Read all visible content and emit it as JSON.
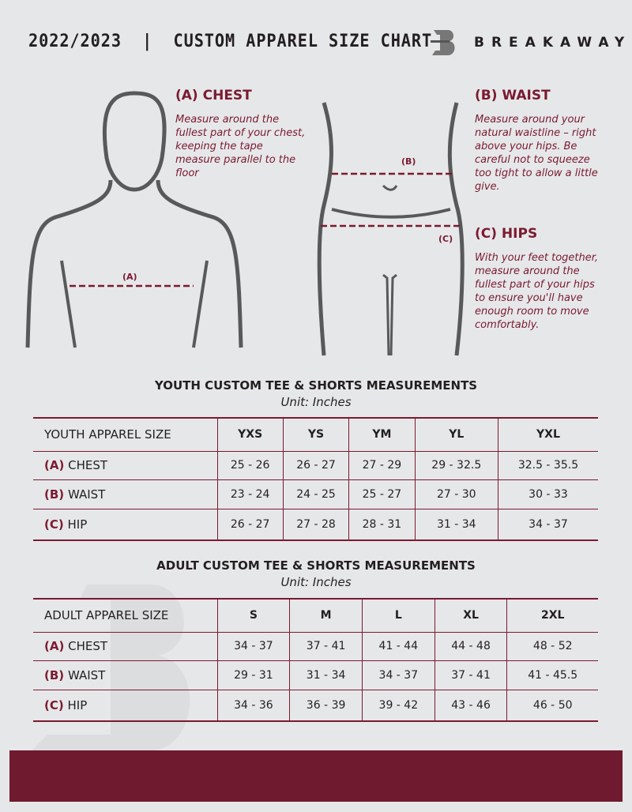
{
  "header": {
    "title": "2022/2023  |  CUSTOM APPAREL SIZE CHART",
    "brand": "BREAKAWAY"
  },
  "guides": {
    "chest": {
      "heading": "(A) CHEST",
      "text": "Measure around the fullest part of your chest, keeping the tape measure parallel to the floor",
      "marker": "(A)"
    },
    "waist": {
      "heading": "(B) WAIST",
      "text": "Measure around your natural waistline – right above your hips. Be careful not to squeeze too tight to allow a little give.",
      "marker": "(B)"
    },
    "hips": {
      "heading": "(C) HIPS",
      "text": "With your feet together, measure around the fullest part of your hips to ensure you'll have enough room to move comfortably.",
      "marker": "(C)"
    }
  },
  "youth": {
    "title": "YOUTH CUSTOM TEE & SHORTS MEASUREMENTS",
    "unit": "Unit: Inches",
    "size_label": "YOUTH APPAREL SIZE",
    "sizes": [
      "YXS",
      "YS",
      "YM",
      "YL",
      "YXL"
    ],
    "rows": [
      {
        "letter": "(A)",
        "name": "CHEST",
        "values": [
          "25 - 26",
          "26 - 27",
          "27 - 29",
          "29 - 32.5",
          "32.5 - 35.5"
        ]
      },
      {
        "letter": "(B)",
        "name": "WAIST",
        "values": [
          "23 - 24",
          "24 - 25",
          "25 - 27",
          "27 - 30",
          "30 - 33"
        ]
      },
      {
        "letter": "(C)",
        "name": "HIP",
        "values": [
          "26 - 27",
          "27 - 28",
          "28 - 31",
          "31 - 34",
          "34 - 37"
        ]
      }
    ]
  },
  "adult": {
    "title": "ADULT CUSTOM TEE & SHORTS MEASUREMENTS",
    "unit": "Unit: Inches",
    "size_label": "ADULT APPAREL SIZE",
    "sizes": [
      "S",
      "M",
      "L",
      "XL",
      "2XL"
    ],
    "rows": [
      {
        "letter": "(A)",
        "name": "CHEST",
        "values": [
          "34 - 37",
          "37 - 41",
          "41 - 44",
          "44 - 48",
          "48 - 52"
        ]
      },
      {
        "letter": "(B)",
        "name": "WAIST",
        "values": [
          "29 - 31",
          "31 - 34",
          "34 - 37",
          "37 - 41",
          "41 - 45.5"
        ]
      },
      {
        "letter": "(C)",
        "name": "HIP",
        "values": [
          "34 - 36",
          "36 - 39",
          "39 - 42",
          "43 - 46",
          "46 - 50"
        ]
      }
    ]
  },
  "colors": {
    "accent": "#7a1a30",
    "footer": "#6f1a2e",
    "background": "#e6e7e9"
  }
}
